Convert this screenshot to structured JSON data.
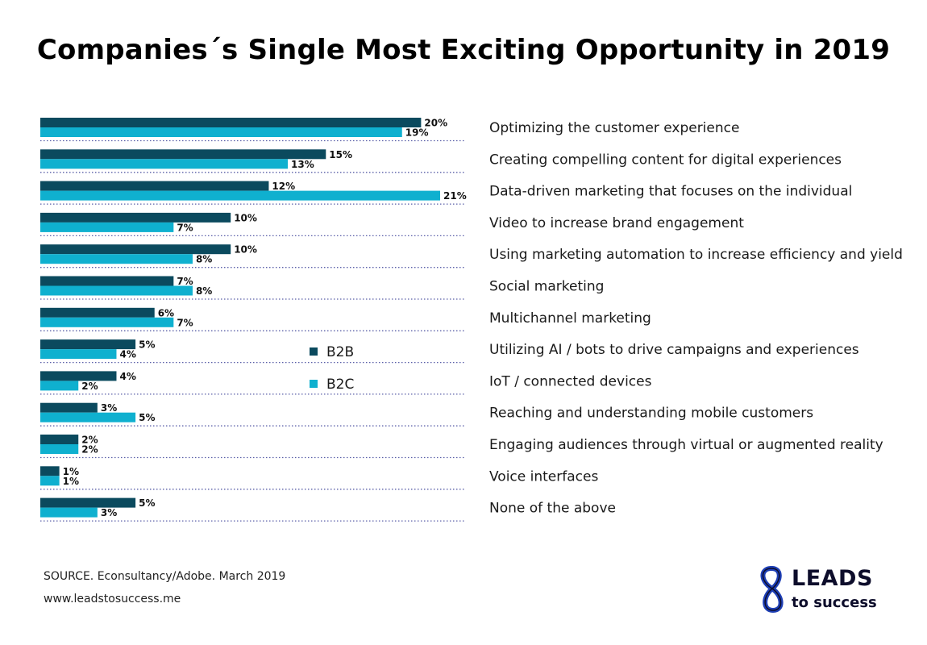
{
  "title": "Companies´s Single Most Exciting Opportunity in 2019",
  "colors": {
    "b2b": "#0b4a5e",
    "b2c": "#0fb0cf",
    "divider": "#5a5fa8"
  },
  "chart_data": {
    "type": "bar",
    "orientation": "horizontal",
    "categories": [
      "Optimizing the customer experience",
      "Creating compelling content for digital experiences",
      "Data-driven marketing that focuses on the individual",
      "Video to increase brand engagement",
      "Using marketing automation to increase efficiency and yield",
      "Social marketing",
      "Multichannel marketing",
      "Utilizing AI / bots to drive campaigns and experiences",
      "IoT / connected devices",
      "Reaching and understanding mobile customers",
      "Engaging audiences through virtual or augmented reality",
      "Voice interfaces",
      "None of the above"
    ],
    "series": [
      {
        "name": "B2B",
        "values": [
          20,
          15,
          12,
          10,
          10,
          7,
          6,
          5,
          4,
          3,
          2,
          1,
          5
        ]
      },
      {
        "name": "B2C",
        "values": [
          19,
          13,
          21,
          7,
          8,
          8,
          7,
          4,
          2,
          5,
          2,
          1,
          3
        ]
      }
    ],
    "value_suffix": "%",
    "xlim": [
      0,
      21
    ],
    "grid": false,
    "legend_placement": "middle-right"
  },
  "footer": {
    "source": "SOURCE. Econsultancy/Adobe. March 2019",
    "url": "www.leadstosuccess.me"
  },
  "logo": {
    "main": "LEADS",
    "sub": "to success"
  }
}
